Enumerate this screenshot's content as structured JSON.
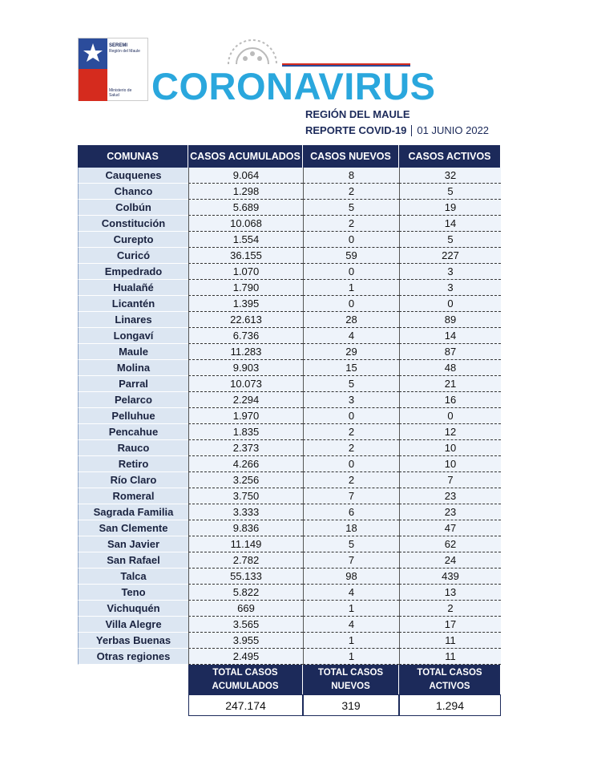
{
  "header": {
    "logo_top": "SEREMI",
    "logo_region": "Región del Maule",
    "logo_bottom": "Ministerio de Salud",
    "title": "CORONAVIRUS",
    "subtitle": "REGIÓN DEL MAULE",
    "report": "REPORTE COVID-19",
    "date": "01 JUNIO 2022"
  },
  "table": {
    "columns": [
      "COMUNAS",
      "CASOS ACUMULADOS",
      "CASOS NUEVOS",
      "CASOS ACTIVOS"
    ],
    "rows": [
      [
        "Cauquenes",
        "9.064",
        "8",
        "32"
      ],
      [
        "Chanco",
        "1.298",
        "2",
        "5"
      ],
      [
        "Colbún",
        "5.689",
        "5",
        "19"
      ],
      [
        "Constitución",
        "10.068",
        "2",
        "14"
      ],
      [
        "Curepto",
        "1.554",
        "0",
        "5"
      ],
      [
        "Curicó",
        "36.155",
        "59",
        "227"
      ],
      [
        "Empedrado",
        "1.070",
        "0",
        "3"
      ],
      [
        "Hualañé",
        "1.790",
        "1",
        "3"
      ],
      [
        "Licantén",
        "1.395",
        "0",
        "0"
      ],
      [
        "Linares",
        "22.613",
        "28",
        "89"
      ],
      [
        "Longaví",
        "6.736",
        "4",
        "14"
      ],
      [
        "Maule",
        "11.283",
        "29",
        "87"
      ],
      [
        "Molina",
        "9.903",
        "15",
        "48"
      ],
      [
        "Parral",
        "10.073",
        "5",
        "21"
      ],
      [
        "Pelarco",
        "2.294",
        "3",
        "16"
      ],
      [
        "Pelluhue",
        "1.970",
        "0",
        "0"
      ],
      [
        "Pencahue",
        "1.835",
        "2",
        "12"
      ],
      [
        "Rauco",
        "2.373",
        "2",
        "10"
      ],
      [
        "Retiro",
        "4.266",
        "0",
        "10"
      ],
      [
        "Río Claro",
        "3.256",
        "2",
        "7"
      ],
      [
        "Romeral",
        "3.750",
        "7",
        "23"
      ],
      [
        "Sagrada Familia",
        "3.333",
        "6",
        "23"
      ],
      [
        "San Clemente",
        "9.836",
        "18",
        "47"
      ],
      [
        "San Javier",
        "11.149",
        "5",
        "62"
      ],
      [
        "San Rafael",
        "2.782",
        "7",
        "24"
      ],
      [
        "Talca",
        "55.133",
        "98",
        "439"
      ],
      [
        "Teno",
        "5.822",
        "4",
        "13"
      ],
      [
        "Vichuquén",
        "669",
        "1",
        "2"
      ],
      [
        "Villa Alegre",
        "3.565",
        "4",
        "17"
      ],
      [
        "Yerbas Buenas",
        "3.955",
        "1",
        "11"
      ],
      [
        "Otras regiones",
        "2.495",
        "1",
        "11"
      ]
    ]
  },
  "totals": {
    "labels": [
      "TOTAL CASOS ACUMULADOS",
      "TOTAL CASOS NUEVOS",
      "TOTAL CASOS ACTIVOS"
    ],
    "values": [
      "247.174",
      "319",
      "1.294"
    ]
  }
}
